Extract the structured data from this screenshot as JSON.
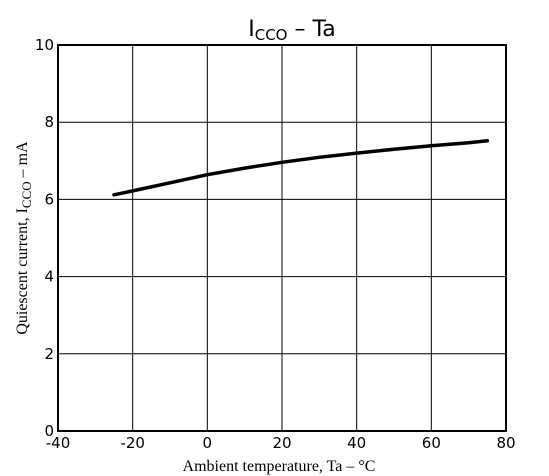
{
  "chart_data": {
    "type": "line",
    "title_main": "I",
    "title_sub": "CCO",
    "title_rest": " – Ta",
    "xlabel": "Ambient temperature, Ta – °C",
    "ylabel_main": "Quiescent current, I",
    "ylabel_sub": "CCO",
    "ylabel_rest": " – mA",
    "xlim": [
      -40,
      80
    ],
    "ylim": [
      0,
      10
    ],
    "xticks": [
      -40,
      -20,
      0,
      20,
      40,
      60,
      80
    ],
    "yticks": [
      0,
      2,
      4,
      6,
      8,
      10
    ],
    "grid": true,
    "series": [
      {
        "x": [
          -25,
          -20,
          -10,
          0,
          10,
          20,
          30,
          40,
          50,
          60,
          70,
          75
        ],
        "y": [
          6.12,
          6.22,
          6.43,
          6.64,
          6.81,
          6.96,
          7.09,
          7.2,
          7.3,
          7.39,
          7.47,
          7.52
        ]
      }
    ]
  }
}
